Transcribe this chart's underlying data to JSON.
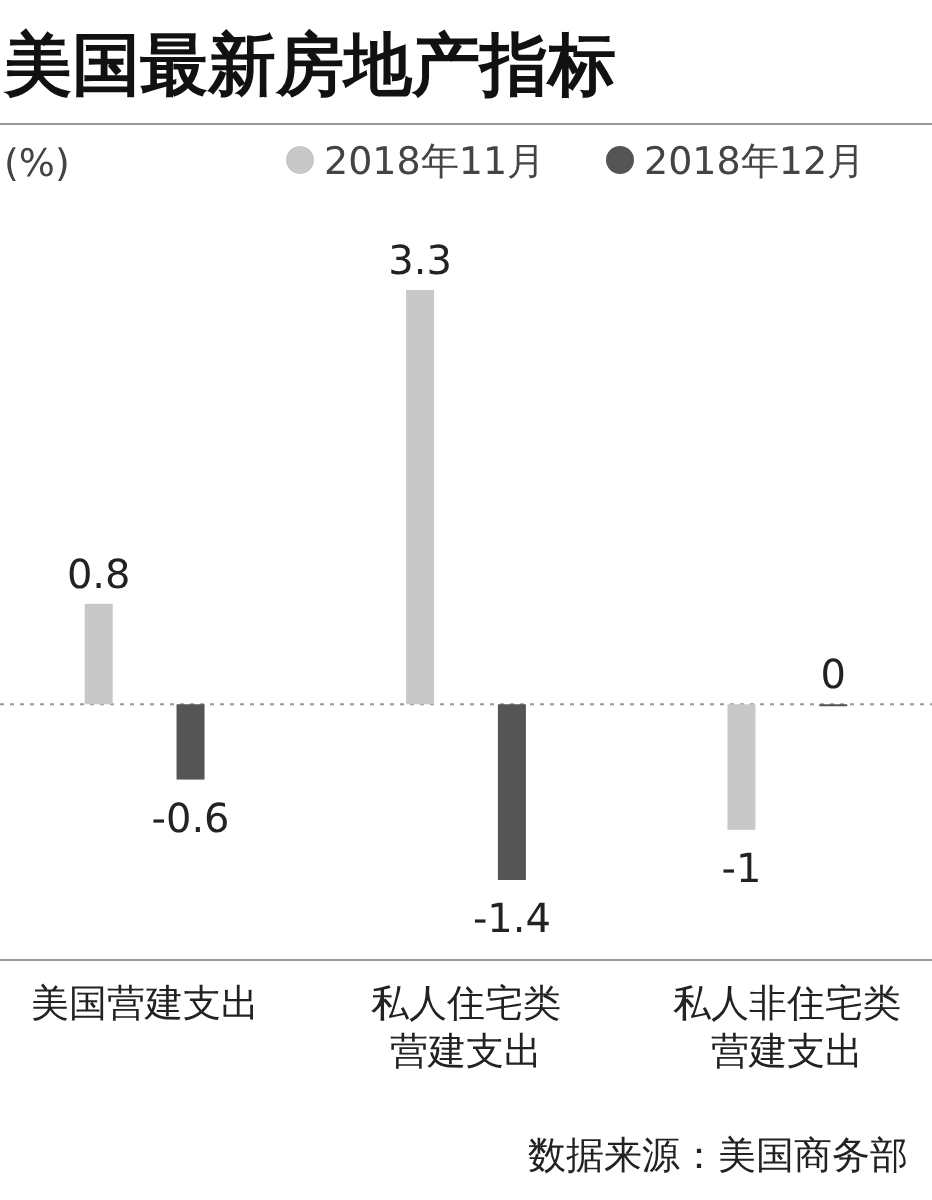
{
  "chart_data": {
    "type": "bar",
    "title": "美国最新房地产指标",
    "ylabel": "(%)",
    "categories": [
      "美国营建支出",
      "私人住宅类营建支出",
      "私人非住宅类营建支出"
    ],
    "series": [
      {
        "name": "2018年11月",
        "color": "#c8c8c8",
        "values": [
          0.8,
          3.3,
          -1
        ]
      },
      {
        "name": "2018年12月",
        "color": "#555555",
        "values": [
          -0.6,
          -1.4,
          0
        ]
      }
    ],
    "ref_lines": [
      {
        "axis": "y",
        "value": 0,
        "color": "#999999",
        "line_style": "dotted"
      }
    ],
    "data_labels": true,
    "legend": "top right",
    "annotations": [
      "数据来源：美国商务部"
    ]
  }
}
